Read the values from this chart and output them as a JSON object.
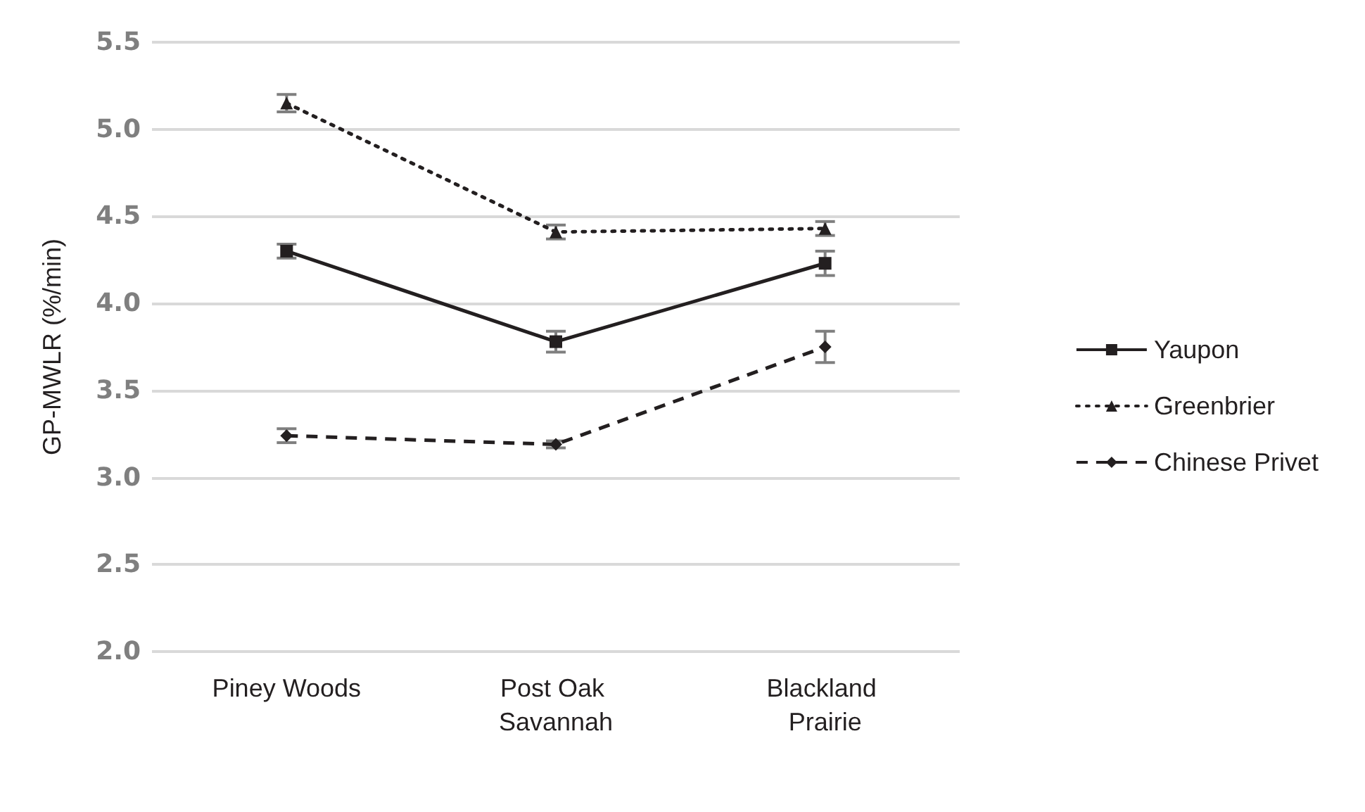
{
  "chart_data": {
    "type": "line",
    "ylabel": "GP-MWLR (%/min)",
    "categories": [
      "Piney Woods",
      "Post Oak Savannah",
      "Blackland Prairie"
    ],
    "series": [
      {
        "name": "Yaupon",
        "color": "#231f20",
        "values": [
          4.3,
          3.78,
          4.23
        ],
        "errors": [
          0.04,
          0.06,
          0.07
        ],
        "marker": "square",
        "line_style": "solid"
      },
      {
        "name": "Greenbrier",
        "color": "#231f20",
        "values": [
          5.15,
          4.41,
          4.43
        ],
        "errors": [
          0.05,
          0.04,
          0.04
        ],
        "marker": "triangle",
        "line_style": "dotted"
      },
      {
        "name": "Chinese Privet",
        "color": "#231f20",
        "values": [
          3.24,
          3.19,
          3.75
        ],
        "errors": [
          0.04,
          0.02,
          0.09
        ],
        "marker": "diamond",
        "line_style": "dashed"
      }
    ],
    "ylim": [
      2.0,
      5.5
    ],
    "yticks": [
      {
        "value": 2,
        "label": "2.0"
      },
      2.5,
      {
        "value": 3,
        "label": "3.0"
      },
      3.5,
      {
        "value": 4,
        "label": "4.0"
      },
      4.5,
      {
        "value": 5,
        "label": "5.0"
      },
      5.5
    ],
    "grid": "y",
    "legend": "right"
  }
}
